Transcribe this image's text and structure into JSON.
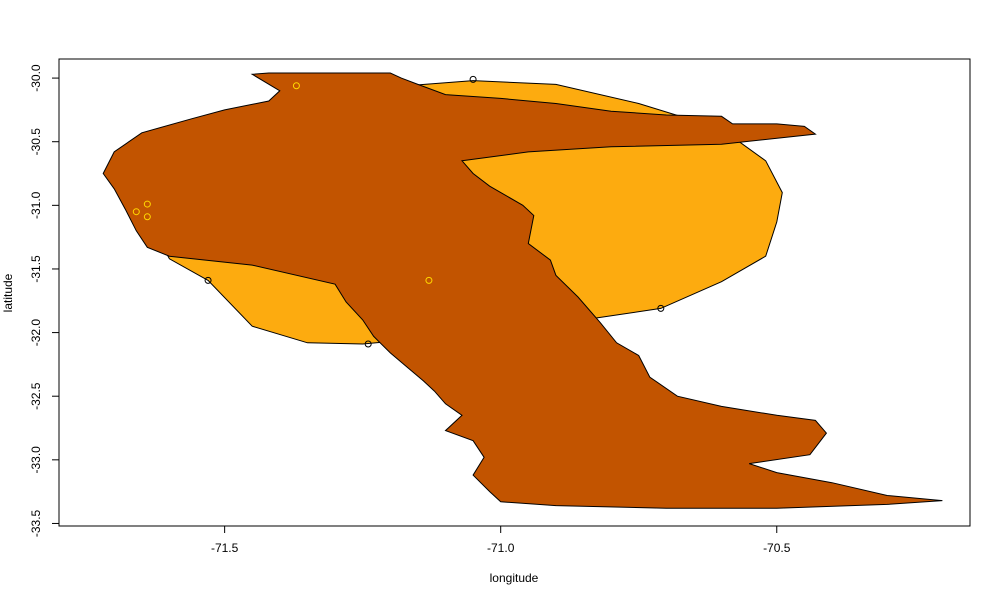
{
  "chart_data": {
    "type": "map",
    "title": "",
    "xlabel": "longitude",
    "ylabel": "latitude",
    "xlim": [
      -71.8,
      -70.15
    ],
    "ylim": [
      -33.52,
      -29.85
    ],
    "xticks": [
      -71.5,
      -71.0,
      -70.5
    ],
    "xtick_labels": [
      "-71.5",
      "-71.0",
      "-70.5"
    ],
    "yticks": [
      -30.0,
      -30.5,
      -31.0,
      -31.5,
      -32.0,
      -32.5,
      -33.0,
      -33.5
    ],
    "ytick_labels": [
      "-30.0",
      "-30.5",
      "-31.0",
      "-31.5",
      "-32.0",
      "-32.5",
      "-33.0",
      "-33.5"
    ],
    "grid": false,
    "colors": {
      "range_polygon": "#fdab0f",
      "region_polygon": "#c25400",
      "black_points": "#000000",
      "yellow_points": "#ffd700"
    },
    "range_polygon": [
      [
        -71.53,
        -31.59
      ],
      [
        -71.6,
        -31.42
      ],
      [
        -71.62,
        -31.26
      ],
      [
        -71.6,
        -31.0
      ],
      [
        -71.52,
        -30.7
      ],
      [
        -71.42,
        -30.42
      ],
      [
        -71.35,
        -30.2
      ],
      [
        -71.2,
        -30.07
      ],
      [
        -71.05,
        -30.02
      ],
      [
        -70.9,
        -30.05
      ],
      [
        -70.75,
        -30.2
      ],
      [
        -70.6,
        -30.4
      ],
      [
        -70.52,
        -30.65
      ],
      [
        -70.49,
        -30.9
      ],
      [
        -70.5,
        -31.13
      ],
      [
        -70.52,
        -31.4
      ],
      [
        -70.6,
        -31.6
      ],
      [
        -70.71,
        -31.81
      ],
      [
        -70.85,
        -31.9
      ],
      [
        -71.0,
        -31.98
      ],
      [
        -71.15,
        -32.05
      ],
      [
        -71.25,
        -32.09
      ],
      [
        -71.35,
        -32.08
      ],
      [
        -71.45,
        -31.95
      ],
      [
        -71.53,
        -31.59
      ]
    ],
    "region_polygon": [
      [
        -71.42,
        -29.96
      ],
      [
        -71.3,
        -29.96
      ],
      [
        -71.2,
        -29.96
      ],
      [
        -71.18,
        -30.0
      ],
      [
        -71.15,
        -30.05
      ],
      [
        -71.1,
        -30.13
      ],
      [
        -71.0,
        -30.16
      ],
      [
        -70.9,
        -30.2
      ],
      [
        -70.8,
        -30.26
      ],
      [
        -70.7,
        -30.29
      ],
      [
        -70.6,
        -30.3
      ],
      [
        -70.58,
        -30.36
      ],
      [
        -70.5,
        -30.36
      ],
      [
        -70.45,
        -30.38
      ],
      [
        -70.43,
        -30.44
      ],
      [
        -70.6,
        -30.52
      ],
      [
        -70.8,
        -30.54
      ],
      [
        -70.95,
        -30.58
      ],
      [
        -71.07,
        -30.65
      ],
      [
        -71.05,
        -30.75
      ],
      [
        -71.02,
        -30.85
      ],
      [
        -70.96,
        -31.0
      ],
      [
        -70.94,
        -31.08
      ],
      [
        -70.95,
        -31.3
      ],
      [
        -70.91,
        -31.43
      ],
      [
        -70.9,
        -31.55
      ],
      [
        -70.86,
        -31.72
      ],
      [
        -70.82,
        -31.92
      ],
      [
        -70.79,
        -32.08
      ],
      [
        -70.75,
        -32.18
      ],
      [
        -70.73,
        -32.35
      ],
      [
        -70.68,
        -32.5
      ],
      [
        -70.6,
        -32.58
      ],
      [
        -70.5,
        -32.65
      ],
      [
        -70.43,
        -32.69
      ],
      [
        -70.41,
        -32.79
      ],
      [
        -70.44,
        -32.96
      ],
      [
        -70.55,
        -33.03
      ],
      [
        -70.5,
        -33.1
      ],
      [
        -70.4,
        -33.18
      ],
      [
        -70.3,
        -33.28
      ],
      [
        -70.2,
        -33.32
      ],
      [
        -70.3,
        -33.35
      ],
      [
        -70.5,
        -33.38
      ],
      [
        -70.7,
        -33.38
      ],
      [
        -70.9,
        -33.36
      ],
      [
        -71.0,
        -33.33
      ],
      [
        -71.02,
        -33.25
      ],
      [
        -71.05,
        -33.12
      ],
      [
        -71.03,
        -32.98
      ],
      [
        -71.05,
        -32.85
      ],
      [
        -71.1,
        -32.77
      ],
      [
        -71.07,
        -32.65
      ],
      [
        -71.1,
        -32.56
      ],
      [
        -71.12,
        -32.46
      ],
      [
        -71.14,
        -32.38
      ],
      [
        -71.17,
        -32.27
      ],
      [
        -71.2,
        -32.16
      ],
      [
        -71.23,
        -32.03
      ],
      [
        -71.25,
        -31.9
      ],
      [
        -71.28,
        -31.76
      ],
      [
        -71.3,
        -31.62
      ],
      [
        -71.45,
        -31.47
      ],
      [
        -71.6,
        -31.4
      ],
      [
        -71.64,
        -31.33
      ],
      [
        -71.66,
        -31.2
      ],
      [
        -71.68,
        -31.03
      ],
      [
        -71.7,
        -30.87
      ],
      [
        -71.72,
        -30.75
      ],
      [
        -71.7,
        -30.58
      ],
      [
        -71.65,
        -30.43
      ],
      [
        -71.56,
        -30.32
      ],
      [
        -71.5,
        -30.25
      ],
      [
        -71.42,
        -30.18
      ],
      [
        -71.4,
        -30.1
      ],
      [
        -71.45,
        -29.97
      ],
      [
        -71.42,
        -29.96
      ]
    ],
    "points_black": [
      {
        "x": -71.05,
        "y": -30.01
      },
      {
        "x": -71.53,
        "y": -31.59
      },
      {
        "x": -71.24,
        "y": -32.09
      },
      {
        "x": -70.71,
        "y": -31.81
      }
    ],
    "points_yellow": [
      {
        "x": -71.37,
        "y": -30.06
      },
      {
        "x": -71.64,
        "y": -30.99
      },
      {
        "x": -71.64,
        "y": -31.09
      },
      {
        "x": -71.66,
        "y": -31.05
      },
      {
        "x": -71.13,
        "y": -31.59
      }
    ]
  }
}
